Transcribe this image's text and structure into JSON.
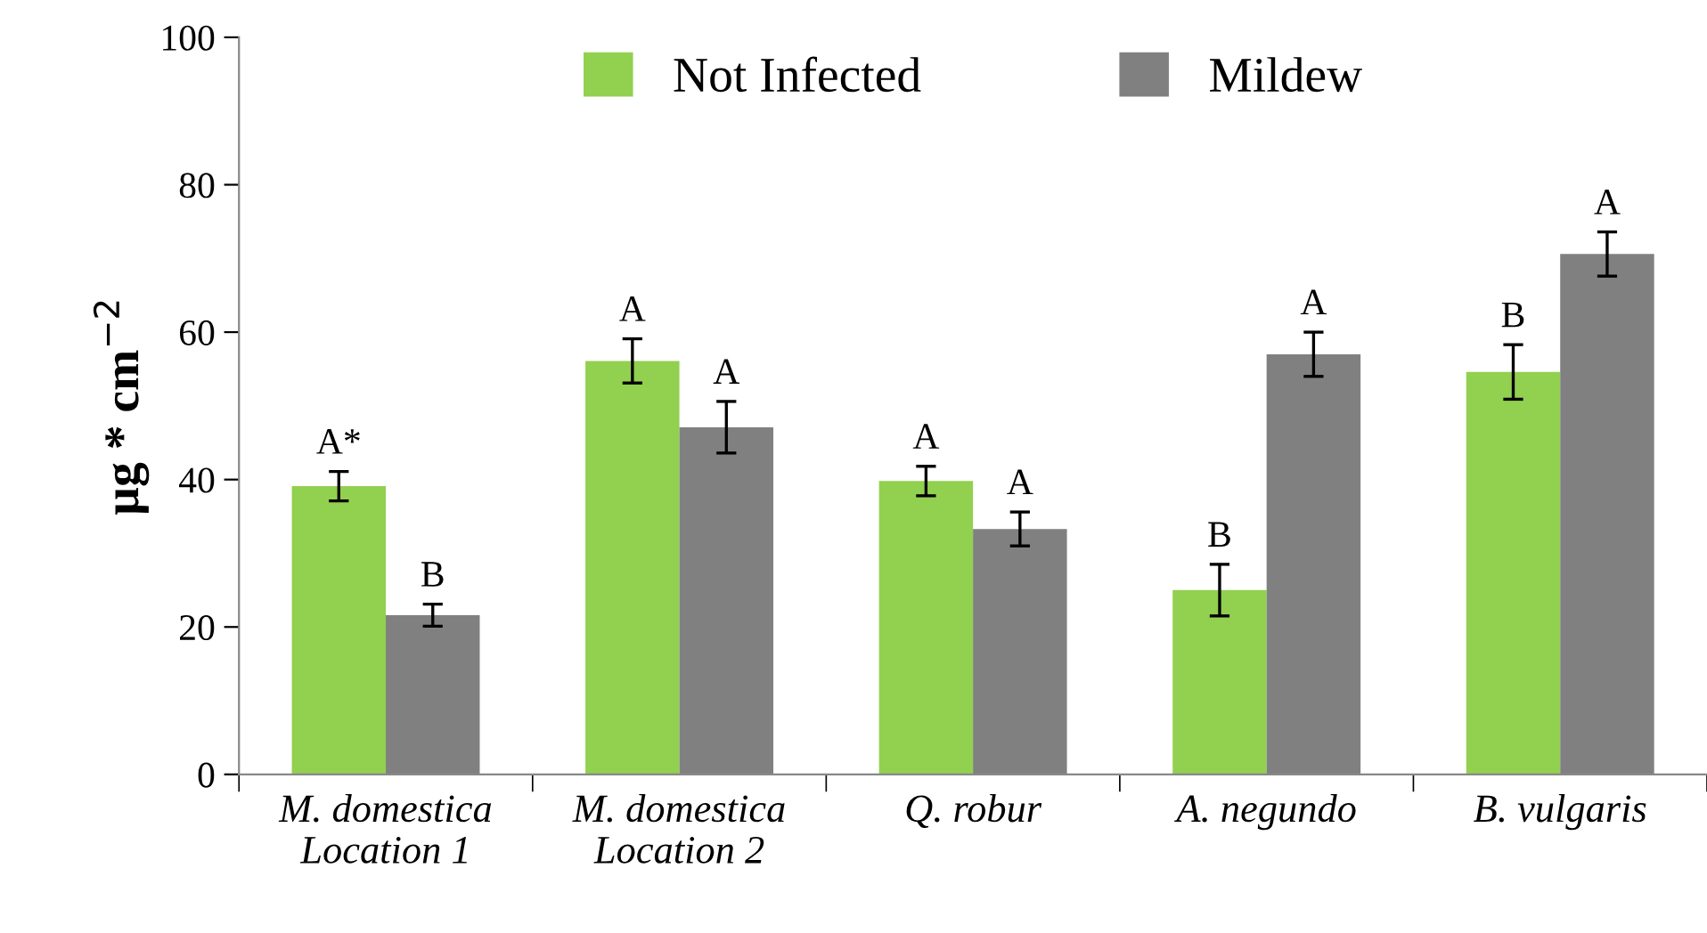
{
  "chart_data": {
    "type": "bar",
    "ylabel": "µg * cm$^{−2}$",
    "categories": [
      "M. domestica\nLocation 1",
      "M. domestica\nLocation 2",
      "Q. robur",
      "A. negundo",
      "B. vulgaris"
    ],
    "series": [
      {
        "name": "Not Infected",
        "color": "#92d050",
        "values": [
          39.1,
          56.1,
          39.8,
          25.0,
          54.6
        ],
        "errors": [
          2.0,
          3.0,
          2.0,
          3.5,
          3.7
        ],
        "value_labels": [
          "A*",
          "A",
          "A",
          "B",
          "B"
        ]
      },
      {
        "name": "Mildew",
        "color": "#808080",
        "values": [
          21.6,
          47.1,
          33.3,
          57.0,
          70.6
        ],
        "errors": [
          1.5,
          3.5,
          2.3,
          3.0,
          3.0
        ],
        "value_labels": [
          "B",
          "A",
          "A",
          "A",
          "A"
        ]
      }
    ],
    "ylim": [
      0,
      100
    ],
    "yticks": [
      0,
      20,
      40,
      60,
      80,
      100
    ],
    "grid": false,
    "legend": "top"
  }
}
